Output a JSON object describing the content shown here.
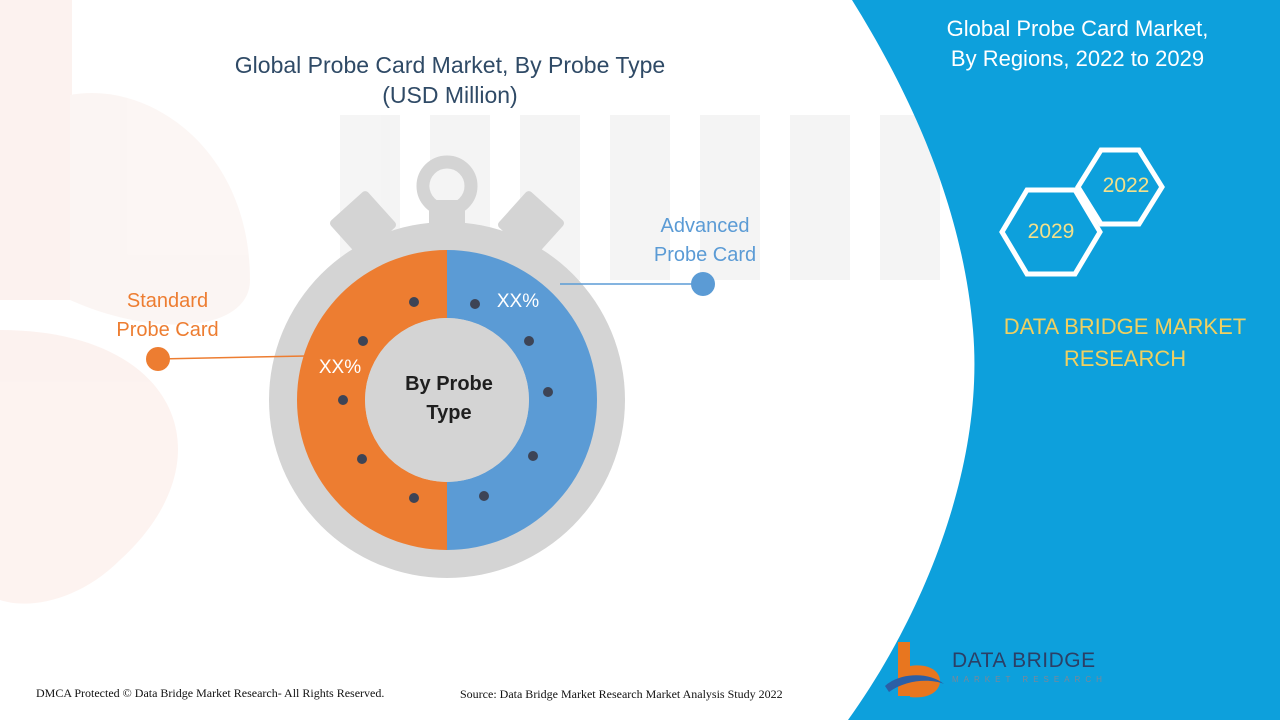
{
  "chart": {
    "title_line1": "Global Probe Card Market, By Probe Type",
    "title_line2": "(USD Million)",
    "center_line1": "By Probe",
    "center_line2": "Type"
  },
  "chart_data": {
    "type": "pie",
    "title": "Global Probe Card Market, By Probe Type (USD Million)",
    "center_text": "By Probe Type",
    "categories": [
      "Standard Probe Card",
      "Advanced Probe Card"
    ],
    "value_labels": [
      "XX%",
      "XX%"
    ],
    "shares": [
      0.5,
      0.5
    ],
    "colors": [
      "#ed7d31",
      "#5b9bd5"
    ]
  },
  "labels": {
    "standard_line1": "Standard",
    "standard_line2": "Probe Card",
    "advanced_line1": "Advanced",
    "advanced_line2": "Probe Card"
  },
  "panel": {
    "title_line1": "Global Probe Card Market,",
    "title_line2": "By Regions, 2022 to 2029",
    "year_start": "2022",
    "year_end": "2029",
    "brand": "DATA BRIDGE MARKET RESEARCH"
  },
  "footer": {
    "copyright": "DMCA Protected © Data Bridge Market Research- All Rights Reserved.",
    "source": "Source: Data Bridge Market Research Market Analysis Study 2022"
  },
  "logo": {
    "name": "DATA BRIDGE",
    "tagline": "MARKET RESEARCH"
  },
  "colors": {
    "standard": "#ed7d31",
    "advanced": "#5b9bd5",
    "panel_blue": "#0da0dc",
    "stopwatch_gray": "#d4d4d4",
    "brand_gold": "#f0d060"
  }
}
